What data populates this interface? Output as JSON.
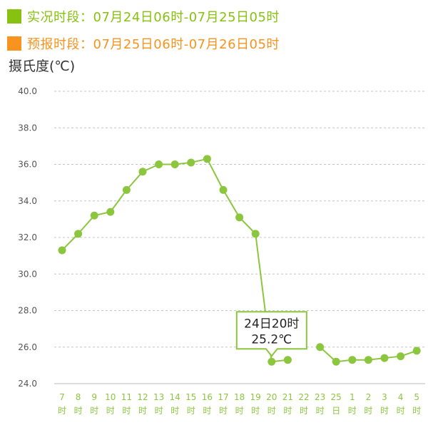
{
  "legend": {
    "actual": {
      "label": "实况时段：07月24日06时-07月25日05时",
      "color": "#86c20f"
    },
    "forecast": {
      "label": "预报时段：07月25日06时-07月26日05时",
      "color": "#f7931e"
    }
  },
  "unit_label": "摄氏度(℃)",
  "tooltip": {
    "line1": "24日20时",
    "line2": "25.2℃"
  },
  "chart_data": {
    "type": "line",
    "title": "",
    "xlabel": "",
    "ylabel": "摄氏度(℃)",
    "ylim": [
      24.0,
      40.0
    ],
    "yticks": [
      "24.0",
      "26.0",
      "28.0",
      "30.0",
      "32.0",
      "34.0",
      "36.0",
      "38.0",
      "40.0"
    ],
    "grid": true,
    "categories": [
      [
        "7",
        "时"
      ],
      [
        "8",
        "时"
      ],
      [
        "9",
        "时"
      ],
      [
        "10",
        "时"
      ],
      [
        "11",
        "时"
      ],
      [
        "12",
        "时"
      ],
      [
        "13",
        "时"
      ],
      [
        "14",
        "时"
      ],
      [
        "15",
        "时"
      ],
      [
        "16",
        "时"
      ],
      [
        "17",
        "时"
      ],
      [
        "18",
        "时"
      ],
      [
        "19",
        "时"
      ],
      [
        "20",
        "时"
      ],
      [
        "21",
        "时"
      ],
      [
        "22",
        "时"
      ],
      [
        "23",
        "时"
      ],
      [
        "25",
        "日"
      ],
      [
        "1",
        "时"
      ],
      [
        "2",
        "时"
      ],
      [
        "3",
        "时"
      ],
      [
        "4",
        "时"
      ],
      [
        "5",
        "时"
      ]
    ],
    "series": [
      {
        "values": [
          31.3,
          32.2,
          33.2,
          33.4,
          34.6,
          35.6,
          36.0,
          36.0,
          36.1,
          36.3,
          34.6,
          33.1,
          32.2,
          25.2,
          25.3,
          null,
          26.0,
          25.2,
          25.3,
          25.3,
          25.4,
          25.5,
          25.8
        ],
        "color": "#8cc63f"
      }
    ],
    "highlight_index": 13
  }
}
